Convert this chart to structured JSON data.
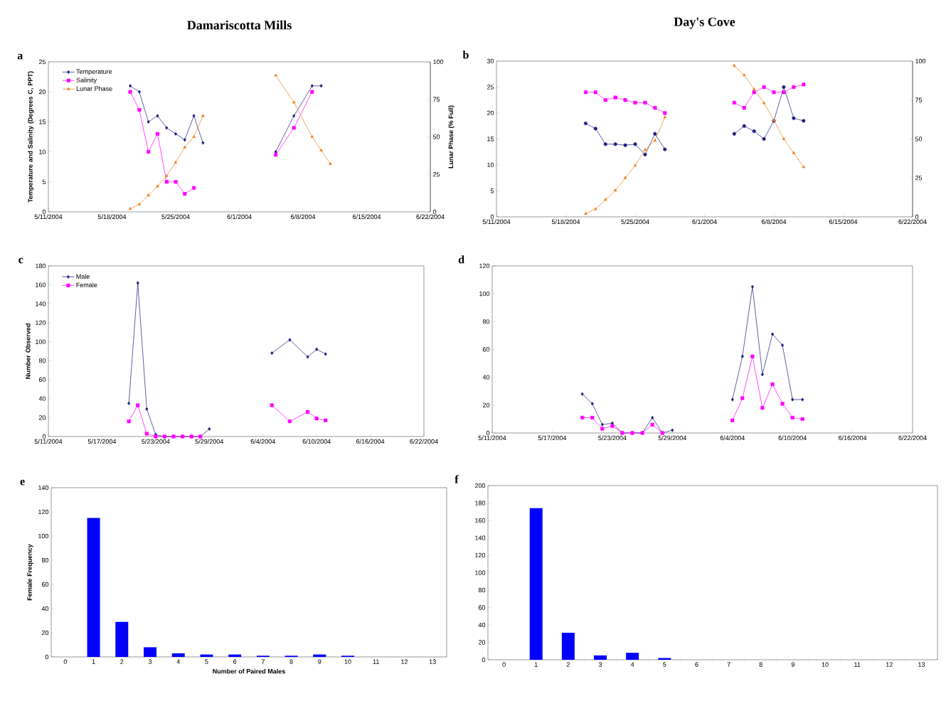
{
  "chart_data": [
    {
      "type": "line",
      "title": "Damariscotta Mills",
      "annotations": [
        "a"
      ],
      "ylabel": "Temperature and Salinity (Degrees C, PPT)",
      "y2label": "Lunar Phase (% Full)",
      "legend": "top left",
      "line_style": "solid",
      "xlim": [
        "2004-05-11",
        "2004-06-22"
      ],
      "xticks": [
        {
          "value": "2004-05-11",
          "label": "5/11/2004"
        },
        {
          "value": "2004-05-18",
          "label": "5/18/2004"
        },
        {
          "value": "2004-05-25",
          "label": "5/25/2004"
        },
        {
          "value": "2004-06-01",
          "label": "6/1/2004"
        },
        {
          "value": "2004-06-08",
          "label": "6/8/2004"
        },
        {
          "value": "2004-06-15",
          "label": "6/15/2004"
        },
        {
          "value": "2004-06-22",
          "label": "6/22/2004"
        }
      ],
      "ylim": [
        0,
        25
      ],
      "yticks": [
        0,
        5,
        10,
        15,
        20,
        25
      ],
      "y2lim": [
        0,
        100
      ],
      "y2ticks": [
        0,
        25,
        50,
        75,
        100
      ],
      "series": [
        {
          "name": "Temperature",
          "color": "#1c1c80",
          "marker": "diamond",
          "x": [
            "2004-05-20",
            "2004-05-21",
            "2004-05-22",
            "2004-05-23",
            "2004-05-24",
            "2004-05-25",
            "2004-05-26",
            "2004-05-27",
            "2004-05-28",
            "2004-06-01",
            "2004-06-05",
            "2004-06-07",
            "2004-06-09",
            "2004-06-10"
          ],
          "values": [
            21,
            20,
            15,
            16,
            14,
            13,
            12,
            16,
            11.5,
            null,
            10,
            16,
            21,
            21
          ]
        },
        {
          "name": "Salinity",
          "color": "#ff00ff",
          "marker": "square",
          "x": [
            "2004-05-20",
            "2004-05-21",
            "2004-05-22",
            "2004-05-23",
            "2004-05-24",
            "2004-05-25",
            "2004-05-26",
            "2004-05-27",
            "2004-06-01",
            "2004-06-05",
            "2004-06-07",
            "2004-06-09"
          ],
          "values": [
            20,
            17,
            10,
            13,
            5,
            5,
            3,
            4,
            null,
            9.5,
            14,
            20
          ]
        },
        {
          "name": "Lunar Phase",
          "color": "#f0801e",
          "marker": "triangle",
          "axis": "y2",
          "x": [
            "2004-05-20",
            "2004-05-21",
            "2004-05-22",
            "2004-05-23",
            "2004-05-24",
            "2004-05-25",
            "2004-05-26",
            "2004-05-27",
            "2004-05-28",
            "2004-06-01",
            "2004-06-05",
            "2004-06-07",
            "2004-06-09",
            "2004-06-10",
            "2004-06-11"
          ],
          "values": [
            2,
            5,
            11,
            17,
            24,
            33,
            43,
            50,
            64,
            null,
            91,
            73,
            50,
            41,
            32
          ]
        }
      ]
    },
    {
      "type": "line",
      "title": "Day's Cove",
      "annotations": [
        "b"
      ],
      "line_style": "solid",
      "xlim": [
        "2004-05-11",
        "2004-06-22"
      ],
      "xticks": [
        {
          "value": "2004-05-11",
          "label": "5/11/2004"
        },
        {
          "value": "2004-05-18",
          "label": "5/18/2004"
        },
        {
          "value": "2004-05-25",
          "label": "5/25/2004"
        },
        {
          "value": "2004-06-01",
          "label": "6/1/2004"
        },
        {
          "value": "2004-06-08",
          "label": "6/8/2004"
        },
        {
          "value": "2004-06-15",
          "label": "6/15/2004"
        },
        {
          "value": "2004-06-22",
          "label": "6/22/2004"
        }
      ],
      "ylim": [
        0,
        30
      ],
      "yticks": [
        0,
        5,
        10,
        15,
        20,
        25,
        30
      ],
      "y2lim": [
        0,
        100
      ],
      "y2ticks": [
        0,
        25,
        50,
        75,
        100
      ],
      "series": [
        {
          "color": "#1c1c80",
          "marker": "circle",
          "x": [
            "2004-05-20",
            "2004-05-21",
            "2004-05-22",
            "2004-05-23",
            "2004-05-24",
            "2004-05-25",
            "2004-05-26",
            "2004-05-27",
            "2004-05-28",
            "2004-06-01",
            "2004-06-04",
            "2004-06-05",
            "2004-06-06",
            "2004-06-07",
            "2004-06-08",
            "2004-06-09",
            "2004-06-10",
            "2004-06-11"
          ],
          "values": [
            18,
            17,
            14,
            14,
            13.8,
            14,
            12,
            16,
            13,
            null,
            16,
            17.5,
            16.5,
            15,
            18.5,
            25,
            19,
            18.5
          ]
        },
        {
          "color": "#ff00ff",
          "marker": "square",
          "x": [
            "2004-05-20",
            "2004-05-21",
            "2004-05-22",
            "2004-05-23",
            "2004-05-24",
            "2004-05-25",
            "2004-05-26",
            "2004-05-27",
            "2004-05-28",
            "2004-06-01",
            "2004-06-04",
            "2004-06-05",
            "2004-06-06",
            "2004-06-07",
            "2004-06-08",
            "2004-06-09",
            "2004-06-10",
            "2004-06-11"
          ],
          "values": [
            24,
            24,
            22.5,
            23,
            22.5,
            22,
            22,
            21,
            20,
            null,
            22,
            21,
            24,
            25,
            24,
            24,
            25,
            25.5
          ]
        },
        {
          "color": "#f0801e",
          "marker": "triangle",
          "axis": "y2",
          "x": [
            "2004-05-20",
            "2004-05-21",
            "2004-05-22",
            "2004-05-23",
            "2004-05-24",
            "2004-05-25",
            "2004-05-26",
            "2004-05-27",
            "2004-05-28",
            "2004-06-01",
            "2004-06-04",
            "2004-06-05",
            "2004-06-06",
            "2004-06-07",
            "2004-06-08",
            "2004-06-09",
            "2004-06-10",
            "2004-06-11"
          ],
          "values": [
            2,
            5,
            11,
            17,
            25,
            33,
            43,
            49,
            64,
            null,
            97,
            91,
            82,
            73,
            62,
            50,
            41,
            32
          ]
        }
      ]
    },
    {
      "type": "line",
      "annotations": [
        "c"
      ],
      "ylabel": "Number Observed",
      "legend": "top left",
      "line_style": "solid",
      "xlim": [
        "2004-05-11",
        "2004-06-22"
      ],
      "xticks": [
        {
          "value": "2004-05-11",
          "label": "5/11/2004"
        },
        {
          "value": "2004-05-17",
          "label": "5/17/2004"
        },
        {
          "value": "2004-05-23",
          "label": "5/23/2004"
        },
        {
          "value": "2004-05-29",
          "label": "5/29/2004"
        },
        {
          "value": "2004-06-04",
          "label": "6/4/2004"
        },
        {
          "value": "2004-06-10",
          "label": "6/10/2004"
        },
        {
          "value": "2004-06-16",
          "label": "6/16/2004"
        },
        {
          "value": "2004-06-22",
          "label": "6/22/2004"
        }
      ],
      "ylim": [
        0,
        180
      ],
      "yticks": [
        0,
        20,
        40,
        60,
        80,
        100,
        120,
        140,
        160,
        180
      ],
      "series": [
        {
          "name": "Male",
          "color": "#1c1c80",
          "marker": "diamond",
          "x": [
            "2004-05-20",
            "2004-05-21",
            "2004-05-22",
            "2004-05-23",
            "2004-05-24",
            "2004-05-25",
            "2004-05-26",
            "2004-05-27",
            "2004-05-28",
            "2004-05-29",
            "2004-06-01",
            "2004-06-05",
            "2004-06-07",
            "2004-06-09",
            "2004-06-10",
            "2004-06-11"
          ],
          "values": [
            35,
            162,
            29,
            2,
            0,
            0,
            0,
            0,
            0,
            8,
            null,
            88,
            102,
            84,
            92,
            87
          ]
        },
        {
          "name": "Female",
          "color": "#ff00ff",
          "marker": "square",
          "x": [
            "2004-05-20",
            "2004-05-21",
            "2004-05-22",
            "2004-05-23",
            "2004-05-24",
            "2004-05-25",
            "2004-05-26",
            "2004-05-27",
            "2004-05-28",
            "2004-06-01",
            "2004-06-05",
            "2004-06-07",
            "2004-06-09",
            "2004-06-10",
            "2004-06-11"
          ],
          "values": [
            16,
            33,
            3,
            0,
            0,
            0,
            0,
            0,
            0,
            null,
            33,
            16,
            26,
            19,
            17
          ]
        }
      ]
    },
    {
      "type": "line",
      "annotations": [
        "d"
      ],
      "line_style": "solid",
      "xlim": [
        "2004-05-11",
        "2004-06-22"
      ],
      "xticks": [
        {
          "value": "2004-05-11",
          "label": "5/11/2004"
        },
        {
          "value": "2004-05-17",
          "label": "5/17/2004"
        },
        {
          "value": "2004-05-23",
          "label": "5/23/2004"
        },
        {
          "value": "2004-05-29",
          "label": "5/29/2004"
        },
        {
          "value": "2004-06-04",
          "label": "6/4/2004"
        },
        {
          "value": "2004-06-10",
          "label": "6/10/2004"
        },
        {
          "value": "2004-06-16",
          "label": "6/16/2004"
        },
        {
          "value": "2004-06-22",
          "label": "6/22/2004"
        }
      ],
      "ylim": [
        0,
        120
      ],
      "yticks": [
        0,
        20,
        40,
        60,
        80,
        100,
        120
      ],
      "series": [
        {
          "color": "#1c1c80",
          "marker": "diamond",
          "x": [
            "2004-05-20",
            "2004-05-21",
            "2004-05-22",
            "2004-05-23",
            "2004-05-24",
            "2004-05-25",
            "2004-05-26",
            "2004-05-27",
            "2004-05-28",
            "2004-05-29",
            "2004-06-01",
            "2004-06-04",
            "2004-06-05",
            "2004-06-06",
            "2004-06-07",
            "2004-06-08",
            "2004-06-09",
            "2004-06-10",
            "2004-06-11"
          ],
          "values": [
            28,
            21,
            6,
            7,
            0,
            0,
            0,
            11,
            0,
            2,
            null,
            24,
            55,
            105,
            42,
            71,
            63,
            24,
            24
          ]
        },
        {
          "color": "#ff00ff",
          "marker": "square",
          "x": [
            "2004-05-20",
            "2004-05-21",
            "2004-05-22",
            "2004-05-23",
            "2004-05-24",
            "2004-05-25",
            "2004-05-26",
            "2004-05-27",
            "2004-05-28",
            "2004-06-01",
            "2004-06-04",
            "2004-06-05",
            "2004-06-06",
            "2004-06-07",
            "2004-06-08",
            "2004-06-09",
            "2004-06-10",
            "2004-06-11"
          ],
          "values": [
            11,
            11,
            3,
            5,
            0,
            0,
            0,
            6,
            0,
            null,
            9,
            25,
            55,
            18,
            35,
            21,
            11,
            10
          ]
        }
      ]
    },
    {
      "type": "bar",
      "annotations": [
        "e"
      ],
      "xlabel": "Number of Paired Males",
      "ylabel": "Female Frequency",
      "color": "#0000ff",
      "categories": [
        "0",
        "1",
        "2",
        "3",
        "4",
        "5",
        "6",
        "7",
        "8",
        "9",
        "10",
        "11",
        "12",
        "13"
      ],
      "values": [
        0,
        115,
        29,
        8,
        3,
        2,
        2,
        1,
        1,
        2,
        1,
        0,
        0,
        0
      ],
      "ylim": [
        0,
        140
      ],
      "yticks": [
        0,
        20,
        40,
        60,
        80,
        100,
        120,
        140
      ]
    },
    {
      "type": "bar",
      "annotations": [
        "f"
      ],
      "color": "#0000ff",
      "categories": [
        "0",
        "1",
        "2",
        "3",
        "4",
        "5",
        "6",
        "7",
        "8",
        "9",
        "10",
        "11",
        "12",
        "13"
      ],
      "values": [
        0,
        174,
        31,
        5,
        8,
        2,
        0,
        0,
        0,
        0,
        0,
        0,
        0,
        0
      ],
      "ylim": [
        0,
        200
      ],
      "yticks": [
        0,
        20,
        40,
        60,
        80,
        100,
        120,
        140,
        160,
        180,
        200
      ]
    }
  ]
}
